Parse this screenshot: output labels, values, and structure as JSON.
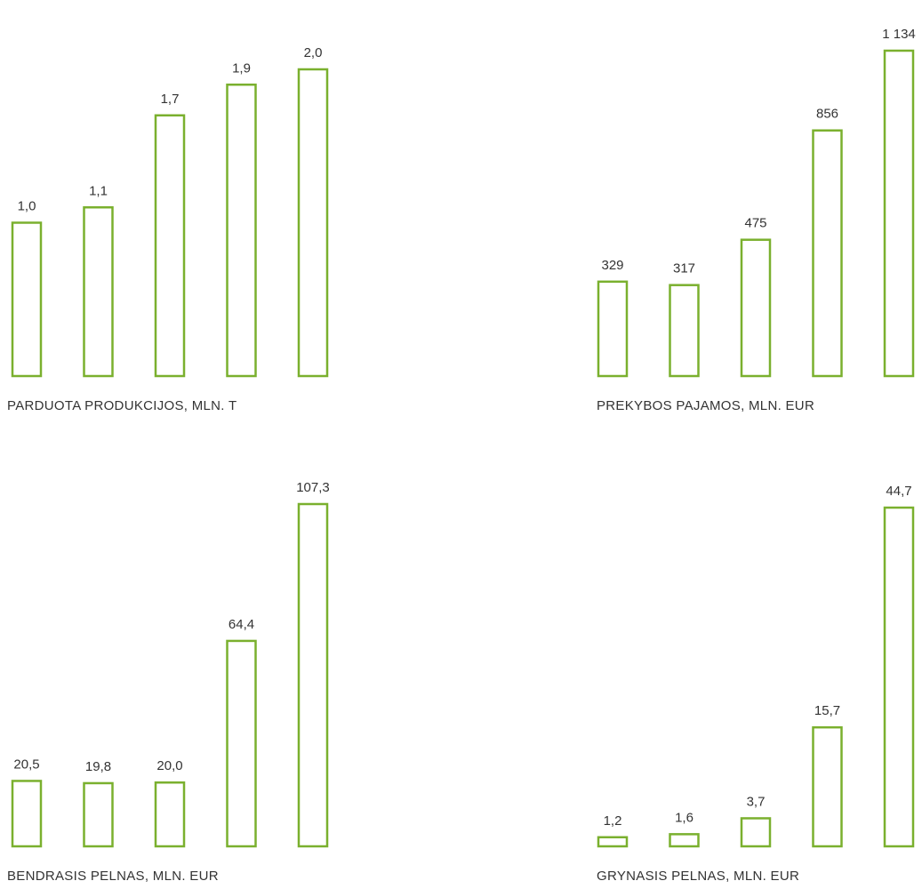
{
  "colors": {
    "bar_stroke": "#7ab02e",
    "bar_fill": "#ffffff",
    "text": "#333333"
  },
  "chart_data": [
    {
      "type": "bar",
      "title": "PARDUOTA PRODUKCIJOS, MLN. T",
      "categories": [
        "",
        "",
        "",
        "",
        ""
      ],
      "values": [
        1.0,
        1.1,
        1.7,
        1.9,
        2.0
      ],
      "labels": [
        "1,0",
        "1,1",
        "1,7",
        "1,9",
        "2,0"
      ],
      "ylim": [
        0,
        2.0
      ]
    },
    {
      "type": "bar",
      "title": "PREKYBOS PAJAMOS, MLN. EUR",
      "categories": [
        "",
        "",
        "",
        "",
        ""
      ],
      "values": [
        329,
        317,
        475,
        856,
        1134
      ],
      "labels": [
        "329",
        "317",
        "475",
        "856",
        "1 134"
      ],
      "ylim": [
        0,
        1134
      ]
    },
    {
      "type": "bar",
      "title": "BENDRASIS PELNAS, MLN. EUR",
      "categories": [
        "",
        "",
        "",
        "",
        ""
      ],
      "values": [
        20.5,
        19.8,
        20.0,
        64.4,
        107.3
      ],
      "labels": [
        "20,5",
        "19,8",
        "20,0",
        "64,4",
        "107,3"
      ],
      "ylim": [
        0,
        107.3
      ]
    },
    {
      "type": "bar",
      "title": "GRYNASIS PELNAS, MLN. EUR",
      "categories": [
        "",
        "",
        "",
        "",
        ""
      ],
      "values": [
        1.2,
        1.6,
        3.7,
        15.7,
        44.7
      ],
      "labels": [
        "1,2",
        "1,6",
        "3,7",
        "15,7",
        "44,7"
      ],
      "ylim": [
        0,
        44.7
      ]
    }
  ]
}
